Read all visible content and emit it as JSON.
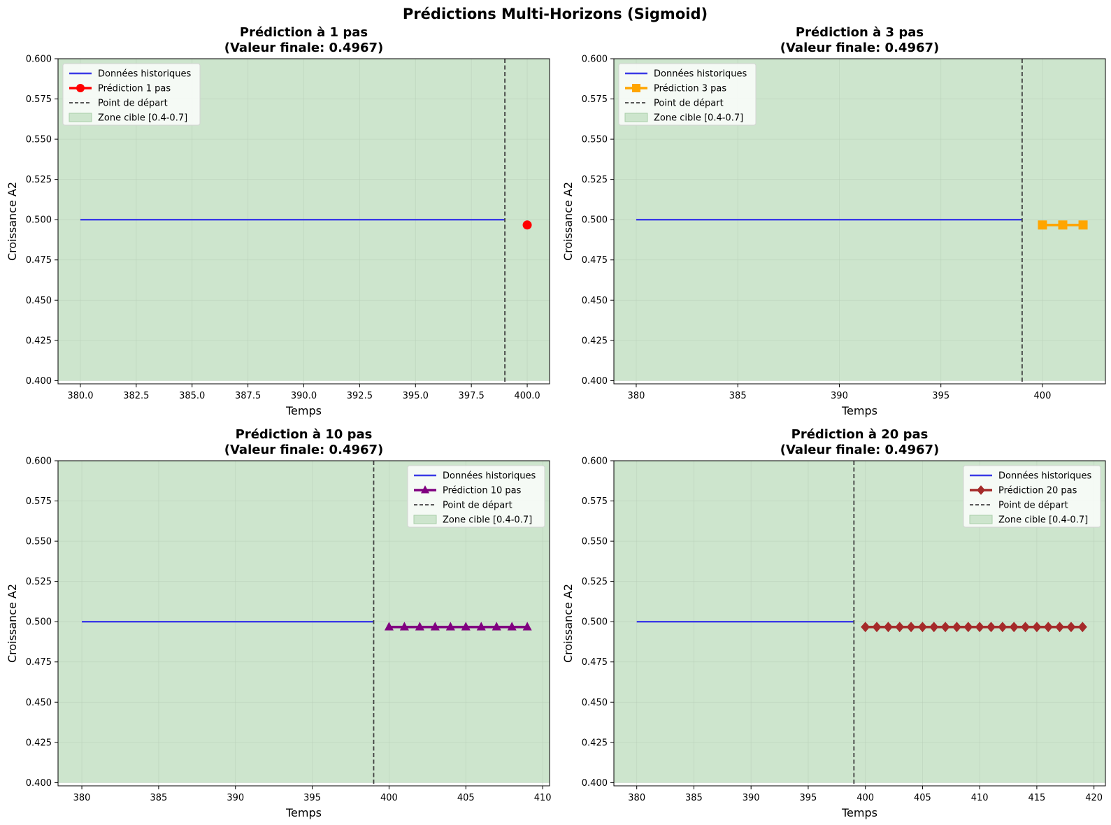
{
  "figure_title": "Prédictions Multi-Horizons (Sigmoid)",
  "colors": {
    "zone_fill": "#cde5cd",
    "zone_edge": "#a9cfa9",
    "historical": "#3a3ae6",
    "start_line": "#404040",
    "grid": "#b8cdb8"
  },
  "chart_data": [
    {
      "type": "line",
      "title": [
        "Prédiction à 1 pas",
        "(Valeur finale: 0.4967)"
      ],
      "xlabel": "Temps",
      "ylabel": "Croissance A2",
      "xlim": [
        379.0,
        401.0
      ],
      "ylim": [
        0.398,
        0.6
      ],
      "xticks": [
        380.0,
        382.5,
        385.0,
        387.5,
        390.0,
        392.5,
        395.0,
        397.5,
        400.0
      ],
      "xtick_labels": [
        "380.0",
        "382.5",
        "385.0",
        "387.5",
        "390.0",
        "392.5",
        "395.0",
        "397.5",
        "400.0"
      ],
      "yticks": [
        0.4,
        0.425,
        0.45,
        0.475,
        0.5,
        0.525,
        0.55,
        0.575,
        0.6
      ],
      "ytick_labels": [
        "0.400",
        "0.425",
        "0.450",
        "0.475",
        "0.500",
        "0.525",
        "0.550",
        "0.575",
        "0.600"
      ],
      "grid": true,
      "legend_position": "upper-left",
      "target_zone": {
        "label": "Zone cible [0.4-0.7]",
        "range": [
          0.4,
          0.7
        ]
      },
      "start_line": {
        "label": "Point de départ",
        "x": 399
      },
      "historical": {
        "name": "Données historiques",
        "x_start": 380,
        "x_end": 399,
        "value": 0.5
      },
      "prediction": {
        "name": "Prédiction 1 pas",
        "color": "#ff0000",
        "marker": "circle",
        "x_start": 400,
        "values": [
          0.4967
        ]
      }
    },
    {
      "type": "line",
      "title": [
        "Prédiction à 3 pas",
        "(Valeur finale: 0.4967)"
      ],
      "xlabel": "Temps",
      "ylabel": "Croissance A2",
      "xlim": [
        378.9,
        403.1
      ],
      "ylim": [
        0.398,
        0.6
      ],
      "xticks": [
        380,
        385,
        390,
        395,
        400
      ],
      "xtick_labels": [
        "380",
        "385",
        "390",
        "395",
        "400"
      ],
      "yticks": [
        0.4,
        0.425,
        0.45,
        0.475,
        0.5,
        0.525,
        0.55,
        0.575,
        0.6
      ],
      "ytick_labels": [
        "0.400",
        "0.425",
        "0.450",
        "0.475",
        "0.500",
        "0.525",
        "0.550",
        "0.575",
        "0.600"
      ],
      "grid": true,
      "legend_position": "upper-left",
      "target_zone": {
        "label": "Zone cible [0.4-0.7]",
        "range": [
          0.4,
          0.7
        ]
      },
      "start_line": {
        "label": "Point de départ",
        "x": 399
      },
      "historical": {
        "name": "Données historiques",
        "x_start": 380,
        "x_end": 399,
        "value": 0.5
      },
      "prediction": {
        "name": "Prédiction 3 pas",
        "color": "#ffa500",
        "marker": "square",
        "x_start": 400,
        "values": [
          0.4967,
          0.4967,
          0.4967
        ]
      }
    },
    {
      "type": "line",
      "title": [
        "Prédiction à 10 pas",
        "(Valeur finale: 0.4967)"
      ],
      "xlabel": "Temps",
      "ylabel": "Croissance A2",
      "xlim": [
        378.45,
        410.45
      ],
      "ylim": [
        0.398,
        0.6
      ],
      "xticks": [
        380,
        385,
        390,
        395,
        400,
        405,
        410
      ],
      "xtick_labels": [
        "380",
        "385",
        "390",
        "395",
        "400",
        "405",
        "410"
      ],
      "yticks": [
        0.4,
        0.425,
        0.45,
        0.475,
        0.5,
        0.525,
        0.55,
        0.575,
        0.6
      ],
      "ytick_labels": [
        "0.400",
        "0.425",
        "0.450",
        "0.475",
        "0.500",
        "0.525",
        "0.550",
        "0.575",
        "0.600"
      ],
      "grid": true,
      "legend_position": "upper-right",
      "target_zone": {
        "label": "Zone cible [0.4-0.7]",
        "range": [
          0.4,
          0.7
        ]
      },
      "start_line": {
        "label": "Point de départ",
        "x": 399
      },
      "historical": {
        "name": "Données historiques",
        "x_start": 380,
        "x_end": 399,
        "value": 0.5
      },
      "prediction": {
        "name": "Prédiction 10 pas",
        "color": "#800080",
        "marker": "triangle",
        "x_start": 400,
        "values": [
          0.4967,
          0.4967,
          0.4967,
          0.4967,
          0.4967,
          0.4967,
          0.4967,
          0.4967,
          0.4967,
          0.4967
        ]
      }
    },
    {
      "type": "line",
      "title": [
        "Prédiction à 20 pas",
        "(Valeur finale: 0.4967)"
      ],
      "xlabel": "Temps",
      "ylabel": "Croissance A2",
      "xlim": [
        378.0,
        421.0
      ],
      "ylim": [
        0.398,
        0.6
      ],
      "xticks": [
        380,
        385,
        390,
        395,
        400,
        405,
        410,
        415,
        420
      ],
      "xtick_labels": [
        "380",
        "385",
        "390",
        "395",
        "400",
        "405",
        "410",
        "415",
        "420"
      ],
      "yticks": [
        0.4,
        0.425,
        0.45,
        0.475,
        0.5,
        0.525,
        0.55,
        0.575,
        0.6
      ],
      "ytick_labels": [
        "0.400",
        "0.425",
        "0.450",
        "0.475",
        "0.500",
        "0.525",
        "0.550",
        "0.575",
        "0.600"
      ],
      "grid": true,
      "legend_position": "upper-right",
      "target_zone": {
        "label": "Zone cible [0.4-0.7]",
        "range": [
          0.4,
          0.7
        ]
      },
      "start_line": {
        "label": "Point de départ",
        "x": 399
      },
      "historical": {
        "name": "Données historiques",
        "x_start": 380,
        "x_end": 399,
        "value": 0.5
      },
      "prediction": {
        "name": "Prédiction 20 pas",
        "color": "#a52a2a",
        "marker": "diamond",
        "x_start": 400,
        "values": [
          0.4967,
          0.4967,
          0.4967,
          0.4967,
          0.4967,
          0.4967,
          0.4967,
          0.4967,
          0.4967,
          0.4967,
          0.4967,
          0.4967,
          0.4967,
          0.4967,
          0.4967,
          0.4967,
          0.4967,
          0.4967,
          0.4967,
          0.4967
        ]
      }
    }
  ]
}
